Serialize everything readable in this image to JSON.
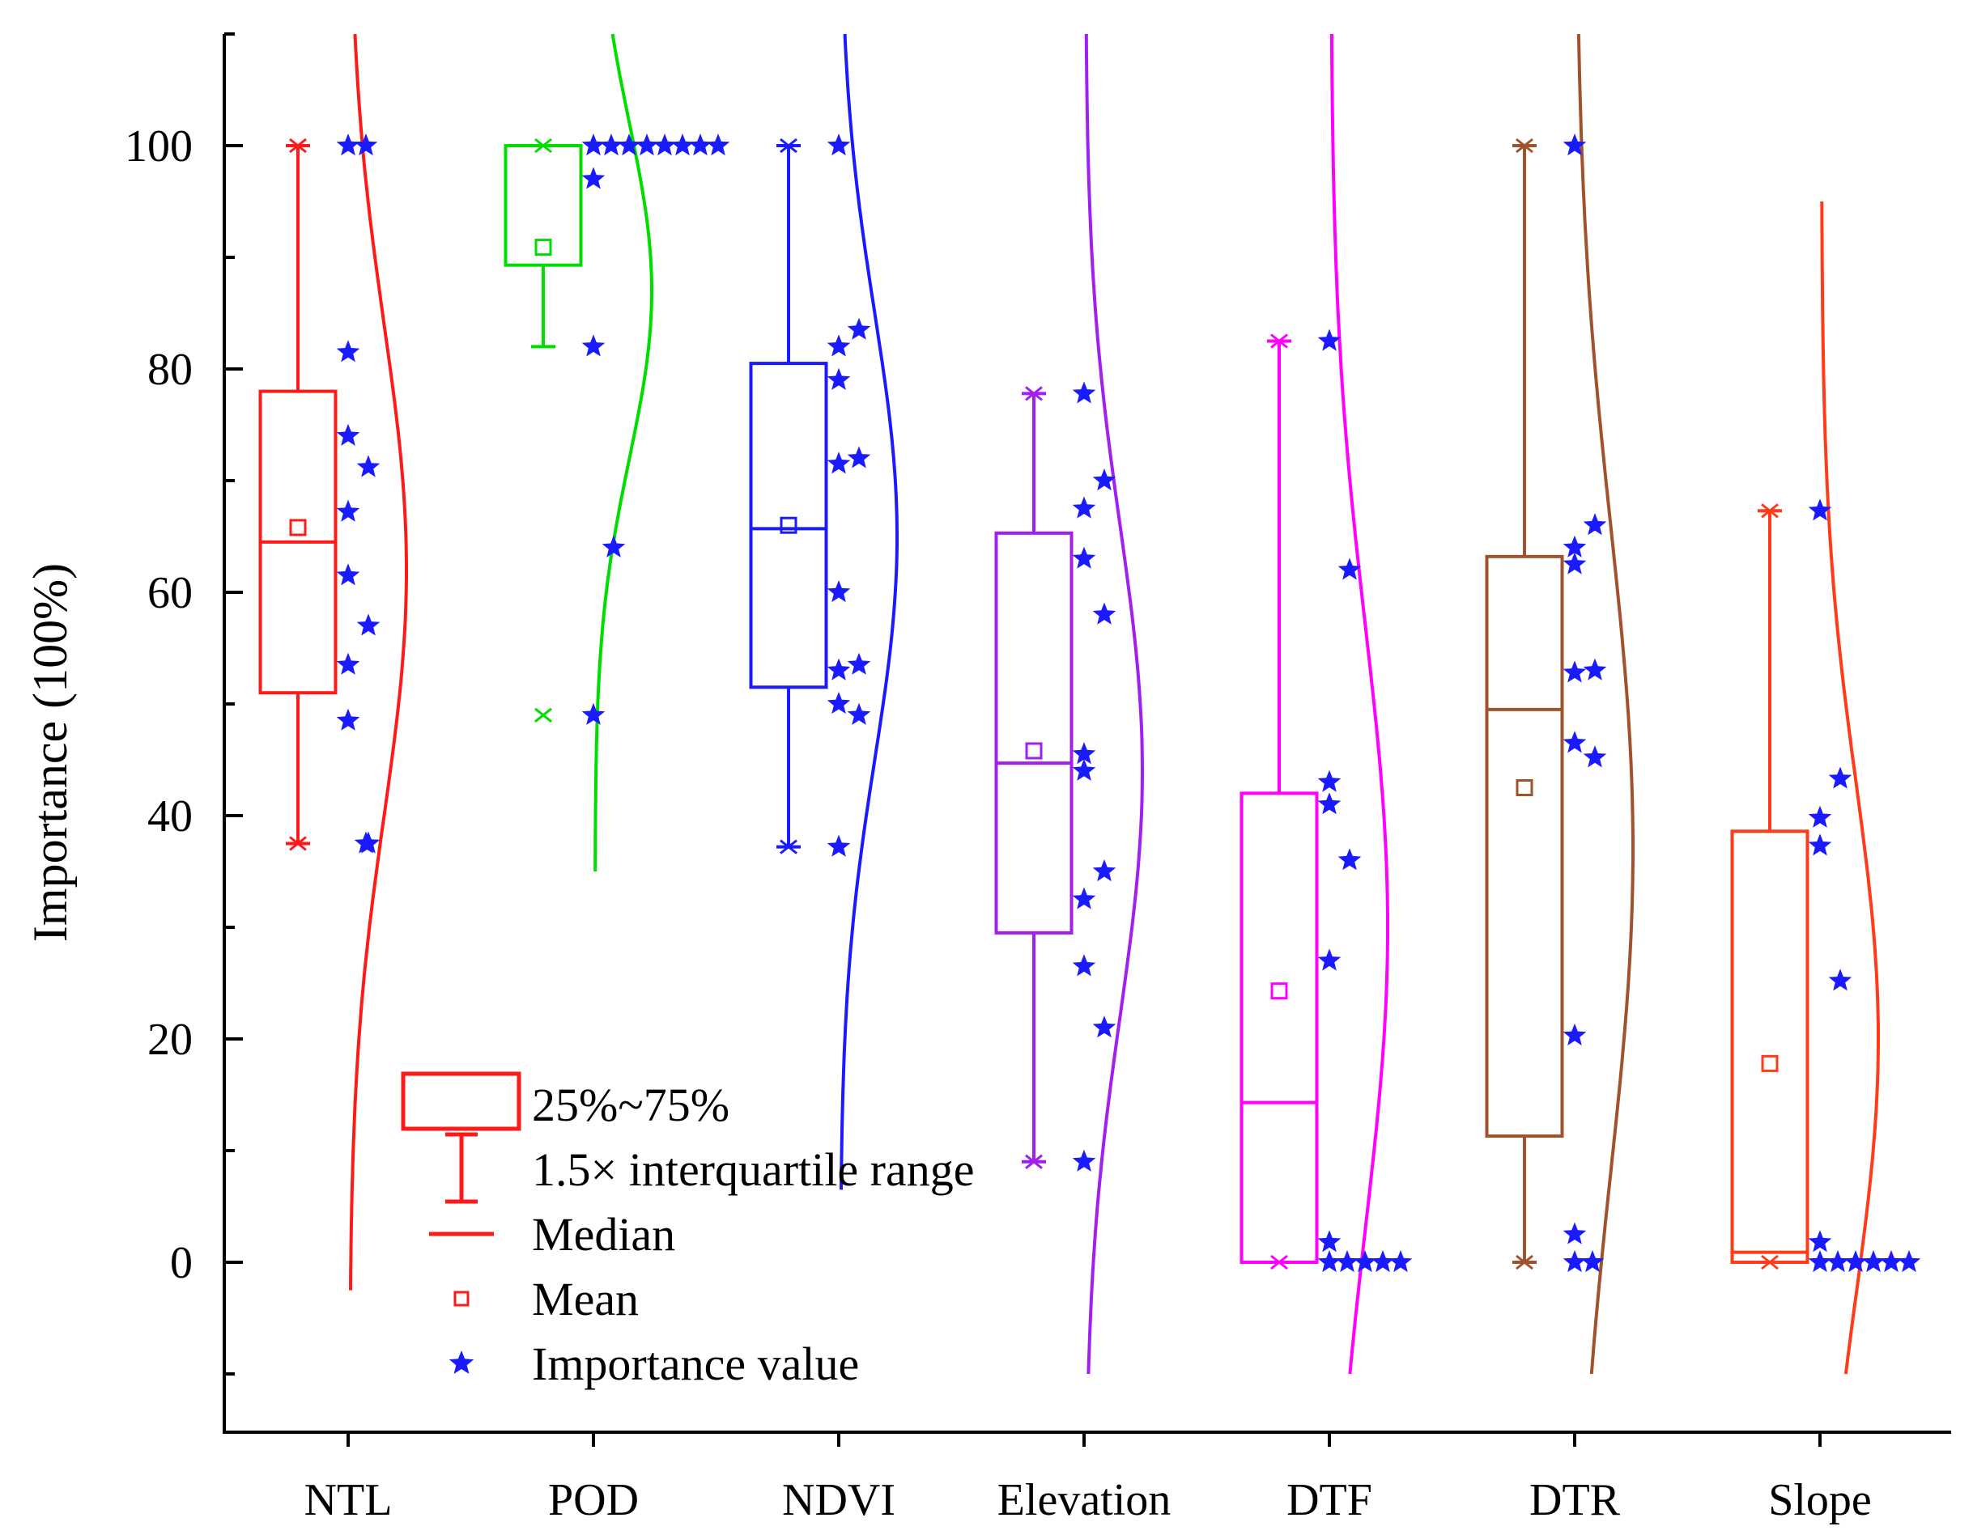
{
  "chart_data": {
    "type": "box",
    "title": "",
    "xlabel": "",
    "ylabel": "Importance (100%)",
    "ylim": [
      -10,
      110
    ],
    "yticks": [
      0,
      20,
      40,
      60,
      80,
      100
    ],
    "categories": [
      "NTL",
      "POD",
      "NDVI",
      "Elevation",
      "DTF",
      "DTR",
      "Slope"
    ],
    "series": [
      {
        "name": "NTL",
        "color": "#ff1a1a",
        "q1": 51,
        "median": 64.5,
        "q3": 78,
        "whisker_low": 37.5,
        "whisker_high": 100,
        "mean": 65.8,
        "min": 37.5,
        "max": 100,
        "points": [
          100,
          100,
          81.5,
          74,
          71.2,
          67.2,
          61.5,
          57,
          53.5,
          48.5,
          37.5,
          37.5
        ],
        "dist_range": [
          -2.5,
          110
        ],
        "dist_mean": 62,
        "dist_sd": 22
      },
      {
        "name": "POD",
        "color": "#00dd00",
        "q1": 89.3,
        "median": 100,
        "q3": 100,
        "whisker_low": 82,
        "whisker_high": 100,
        "mean": 90.9,
        "min": 49,
        "max": 100,
        "points": [
          100,
          100,
          100,
          100,
          100,
          100,
          100,
          100,
          97,
          82,
          64,
          49
        ],
        "dist_range": [
          35,
          110
        ],
        "dist_mean": 87,
        "dist_sd": 15
      },
      {
        "name": "NDVI",
        "color": "#1a1aff",
        "q1": 51.5,
        "median": 65.7,
        "q3": 80.5,
        "whisker_low": 37.2,
        "whisker_high": 100,
        "mean": 66,
        "min": 37.2,
        "max": 100,
        "points": [
          100,
          83.5,
          82,
          79,
          72,
          71.5,
          60,
          53.5,
          53,
          50,
          49,
          37.2
        ],
        "dist_range": [
          6.5,
          110
        ],
        "dist_mean": 65,
        "dist_sd": 20
      },
      {
        "name": "Elevation",
        "color": "#a020f0",
        "q1": 29.5,
        "median": 44.7,
        "q3": 65.3,
        "whisker_low": 9,
        "whisker_high": 77.8,
        "mean": 45.8,
        "min": 9,
        "max": 77.8,
        "points": [
          77.8,
          70,
          67.5,
          63,
          58,
          45.5,
          44,
          35,
          32.5,
          26.5,
          21,
          9
        ],
        "dist_range": [
          -10,
          110
        ],
        "dist_mean": 44,
        "dist_sd": 22
      },
      {
        "name": "DTF",
        "color": "#ff00ff",
        "q1": 0,
        "median": 14.3,
        "q3": 42,
        "whisker_low": 0,
        "whisker_high": 82.5,
        "mean": 24.3,
        "min": 0,
        "max": 82.5,
        "points": [
          82.5,
          62,
          43,
          41,
          36,
          27,
          1.8,
          0,
          0,
          0,
          0,
          0
        ],
        "dist_range": [
          -10,
          110
        ],
        "dist_mean": 30,
        "dist_sd": 27
      },
      {
        "name": "DTR",
        "color": "#a0522d",
        "q1": 11.3,
        "median": 49.5,
        "q3": 63.2,
        "whisker_low": 0,
        "whisker_high": 100,
        "mean": 42.5,
        "min": 0,
        "max": 100,
        "points": [
          100,
          66,
          64,
          62.5,
          53,
          52.8,
          46.5,
          45.2,
          20.3,
          2.5,
          0,
          0
        ],
        "dist_range": [
          -10,
          110
        ],
        "dist_mean": 37,
        "dist_sd": 29
      },
      {
        "name": "Slope",
        "color": "#ff3b1a",
        "q1": 0,
        "median": 0.9,
        "q3": 38.6,
        "whisker_low": 0,
        "whisker_high": 67.3,
        "mean": 17.8,
        "min": 0,
        "max": 67.3,
        "points": [
          67.3,
          43.3,
          39.8,
          37.3,
          25.2,
          1.8,
          0,
          0,
          0,
          0,
          0,
          0
        ],
        "dist_range": [
          -10,
          95
        ],
        "dist_mean": 20,
        "dist_sd": 23
      }
    ],
    "legend": {
      "placement": "lower-left",
      "entries": [
        {
          "symbol": "box",
          "label": "25%~75%"
        },
        {
          "symbol": "whisker",
          "label": "1.5× interquartile range"
        },
        {
          "symbol": "line",
          "label": "Median"
        },
        {
          "symbol": "mean-square",
          "label": "Mean"
        },
        {
          "symbol": "star",
          "label": "Importance value"
        }
      ],
      "color": "#ff1a1a",
      "star_color": "#1a1aff"
    }
  }
}
